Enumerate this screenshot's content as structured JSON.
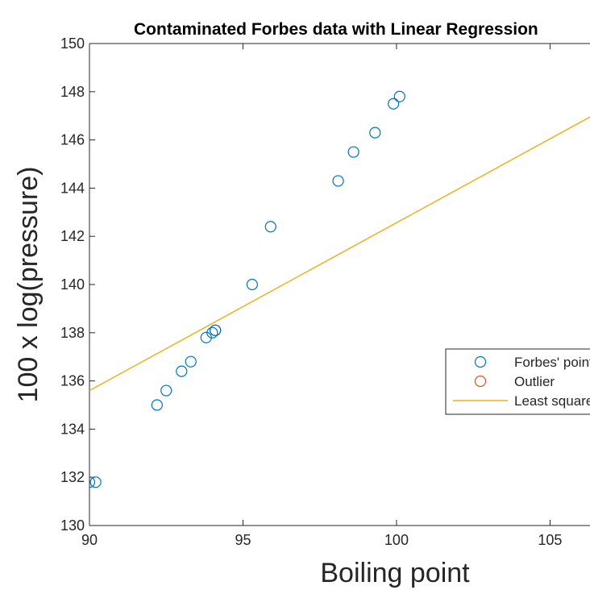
{
  "chart_data": {
    "type": "scatter",
    "title": "Contaminated Forbes data with Linear Regression",
    "xlabel": "Boiling point",
    "ylabel": "100 x log(pressure)",
    "xlim": [
      90,
      106.8
    ],
    "ylim": [
      130,
      150
    ],
    "xticks": [
      90,
      95,
      100,
      105
    ],
    "yticks": [
      130,
      132,
      134,
      136,
      138,
      140,
      142,
      144,
      146,
      148,
      150
    ],
    "grid": false,
    "legend_placement": "right",
    "series": [
      {
        "name": "Forbes' points",
        "kind": "scatter",
        "marker": "circle",
        "color": "#0072BD",
        "points": [
          [
            90.0,
            131.8
          ],
          [
            90.2,
            131.8
          ],
          [
            92.2,
            135.0
          ],
          [
            92.5,
            135.6
          ],
          [
            93.0,
            136.4
          ],
          [
            93.3,
            136.8
          ],
          [
            93.8,
            137.8
          ],
          [
            94.0,
            138.0
          ],
          [
            94.1,
            138.1
          ],
          [
            94.1,
            138.1
          ],
          [
            95.3,
            140.0
          ],
          [
            95.9,
            142.4
          ],
          [
            98.1,
            144.3
          ],
          [
            98.6,
            145.5
          ],
          [
            99.3,
            146.3
          ],
          [
            99.9,
            147.5
          ],
          [
            100.1,
            147.8
          ]
        ]
      },
      {
        "name": "Outlier",
        "kind": "scatter",
        "marker": "circle",
        "color": "#D95319",
        "points": []
      },
      {
        "name": "Least squares",
        "kind": "line",
        "color": "#EDB120",
        "points": [
          [
            90.0,
            135.6
          ],
          [
            106.8,
            147.3
          ]
        ]
      }
    ],
    "legend_labels": [
      "Forbes' points",
      "Outlier",
      "Least squares"
    ]
  }
}
